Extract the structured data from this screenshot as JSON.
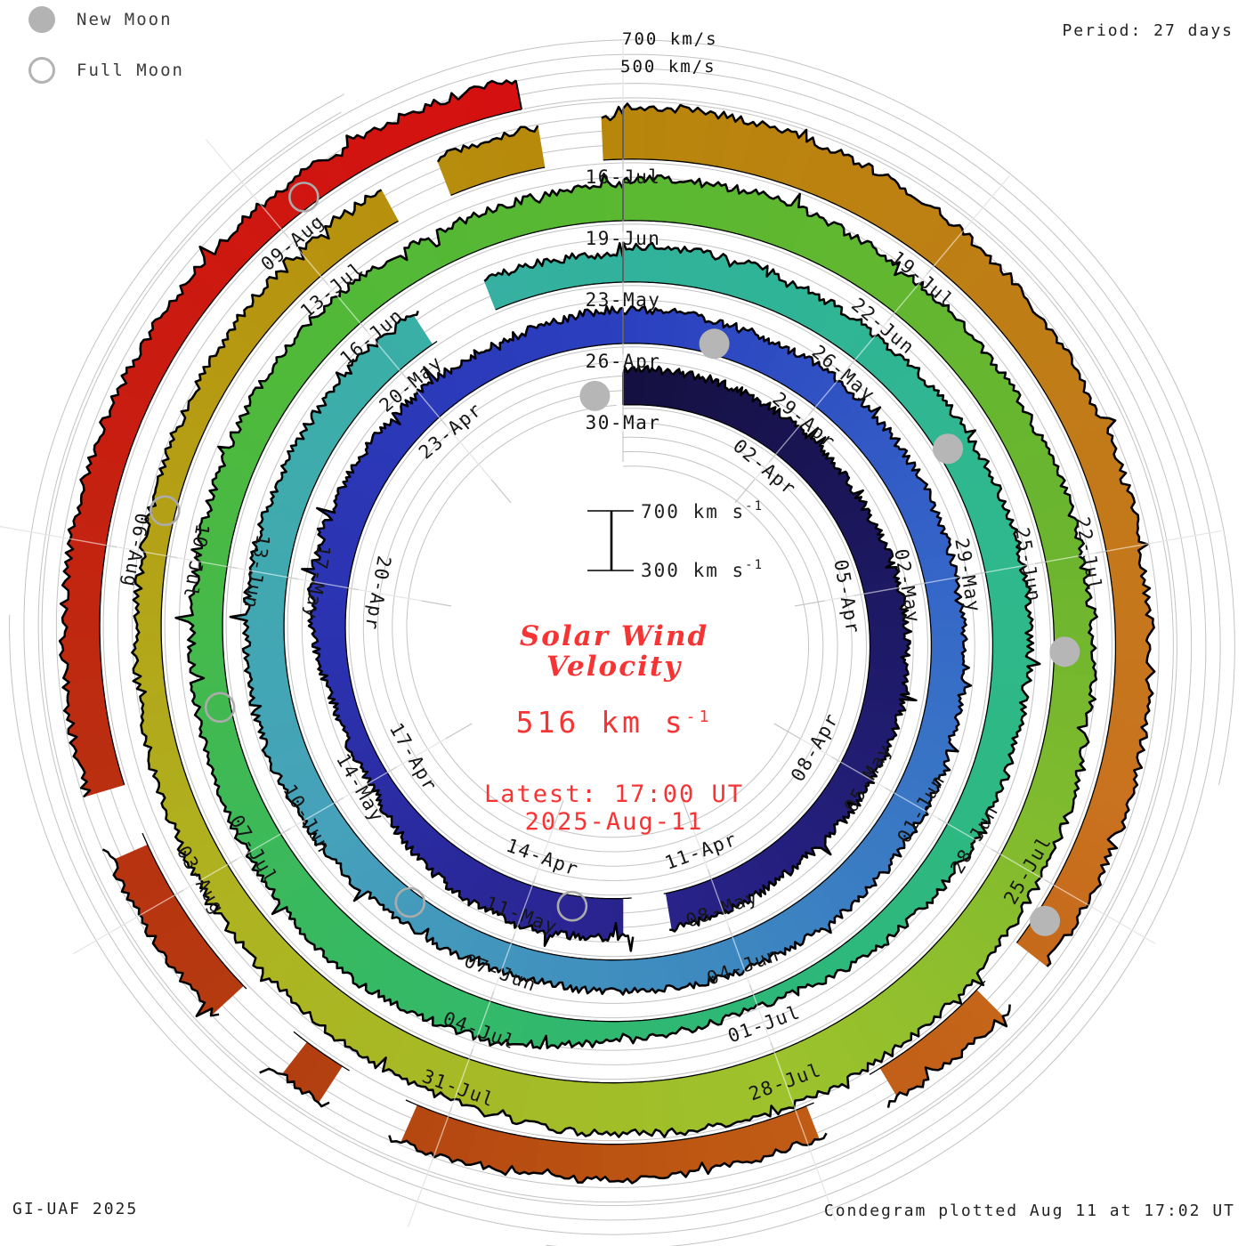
{
  "header": {
    "period_label": "Period: 27 days"
  },
  "legend": {
    "new_moon": {
      "icon": "new-moon-disc",
      "label": "New Moon"
    },
    "full_moon": {
      "icon": "full-moon-circle",
      "label": "Full Moon"
    }
  },
  "top_axis": {
    "labels": [
      "700 km/s",
      "500 km/s"
    ]
  },
  "center": {
    "title_line1": "Solar Wind",
    "title_line2": "Velocity",
    "value_number": "516",
    "value_unit": " km s",
    "value_exponent": "-1",
    "latest_line1": "Latest: 17:00 UT",
    "latest_line2": "2025-Aug-11"
  },
  "scale_bar": {
    "top_value": "700",
    "bottom_value": "300",
    "unit": " km s",
    "exponent": "-1"
  },
  "footer": {
    "left": "GI-UAF 2025",
    "right": "Condegram plotted Aug 11 at 17:02 UT"
  },
  "chart_data": {
    "type": "polar-spiral-condegram",
    "title": "Solar Wind Velocity",
    "latest_velocity_kms": 516,
    "latest_time": "17:00 UT",
    "latest_date": "2025-Aug-11",
    "period_days": 27,
    "velocity_axis": {
      "min_kms": 300,
      "max_kms": 700,
      "gridline_step_kms": 100
    },
    "direction": "clockwise-from-top",
    "start_date": "30-Mar",
    "end_day_offset": 134.2,
    "rotations": [
      {
        "start": "30-Mar",
        "labels": [
          "30-Mar",
          "02-Apr",
          "05-Apr",
          "08-Apr",
          "11-Apr",
          "14-Apr",
          "17-Apr",
          "20-Apr",
          "23-Apr"
        ],
        "profile_kms": [
          545,
          555,
          535,
          520,
          550,
          570,
          550,
          515,
          540,
          560,
          590,
          540,
          430,
          470,
          560,
          545,
          520,
          505,
          540
        ]
      },
      {
        "start": "26-Apr",
        "labels": [
          "26-Apr",
          "29-Apr",
          "02-May",
          "05-May",
          "08-May",
          "11-May",
          "14-May",
          "17-May",
          "20-May"
        ],
        "profile_kms": [
          540,
          525,
          540,
          530,
          515,
          530,
          545,
          555,
          540,
          520,
          500,
          515,
          550,
          570,
          555,
          540,
          550,
          520,
          495
        ]
      },
      {
        "start": "23-May",
        "labels": [
          "23-May",
          "26-May",
          "29-May",
          "01-Jun",
          "04-Jun",
          "07-Jun",
          "10-Jun",
          "13-Jun",
          "16-Jun"
        ],
        "profile_kms": [
          550,
          540,
          520,
          545,
          565,
          545,
          525,
          470,
          380,
          430,
          560,
          615,
          565,
          530,
          505,
          535,
          545,
          530,
          550
        ]
      },
      {
        "start": "19-Jun",
        "labels": [
          "19-Jun",
          "22-Jun",
          "25-Jun",
          "28-Jun",
          "01-Jul",
          "04-Jul",
          "07-Jul",
          "10-Jul",
          "13-Jul"
        ],
        "profile_kms": [
          585,
          605,
          565,
          545,
          560,
          580,
          620,
          665,
          690,
          660,
          615,
          570,
          535,
          495,
          465,
          485,
          530,
          575,
          595
        ]
      },
      {
        "start": "16-Jul",
        "labels": [
          "16-Jul",
          "19-Jul",
          "22-Jul",
          "25-Jul",
          "28-Jul",
          "31-Jul",
          "03-Aug",
          "06-Aug",
          "09-Aug"
        ],
        "profile_kms": [
          670,
          645,
          605,
          565,
          535,
          550,
          562,
          548,
          532,
          548,
          572,
          592,
          578,
          562,
          548,
          528,
          515,
          506,
          514
        ]
      }
    ],
    "color_stops": [
      [
        0,
        "#151040"
      ],
      [
        7,
        "#1e1a68"
      ],
      [
        14,
        "#2a2490"
      ],
      [
        20,
        "#2b32b0"
      ],
      [
        27,
        "#2b3fbf"
      ],
      [
        33,
        "#3566c8"
      ],
      [
        39,
        "#3d87c0"
      ],
      [
        45,
        "#46a2ba"
      ],
      [
        50,
        "#3dadaa"
      ],
      [
        54,
        "#31b29c"
      ],
      [
        60,
        "#2fb88c"
      ],
      [
        66,
        "#2db878"
      ],
      [
        71,
        "#38b960"
      ],
      [
        77,
        "#4fb93a"
      ],
      [
        81,
        "#5ab831"
      ],
      [
        87,
        "#6cb52f"
      ],
      [
        93,
        "#9cc22c"
      ],
      [
        99,
        "#afb220"
      ],
      [
        104,
        "#b69811"
      ],
      [
        108,
        "#b8860b"
      ],
      [
        112,
        "#bf7d16"
      ],
      [
        116,
        "#c9731f"
      ],
      [
        119,
        "#c26018"
      ],
      [
        121,
        "#bd5712"
      ],
      [
        124,
        "#b24110"
      ],
      [
        127,
        "#b93010"
      ],
      [
        130,
        "#c81d10"
      ],
      [
        134.2,
        "#d61010"
      ]
    ],
    "data_gap_day_ranges": [
      [
        12.85,
        13.35
      ],
      [
        51.6,
        52.4
      ],
      [
        105.9,
        106.4
      ],
      [
        107.3,
        107.8
      ],
      [
        117.6,
        118.0
      ],
      [
        119.3,
        119.8
      ],
      [
        123.4,
        123.9
      ],
      [
        124.5,
        125.0
      ],
      [
        126.6,
        127.0
      ]
    ],
    "moons": {
      "new_moon_day_offsets": [
        -0.5,
        28.3,
        58.5,
        87.9,
        117.3
      ],
      "full_moon_day_offsets": [
        14.3,
        43.4,
        73.5,
        102.4,
        132.3
      ]
    }
  }
}
